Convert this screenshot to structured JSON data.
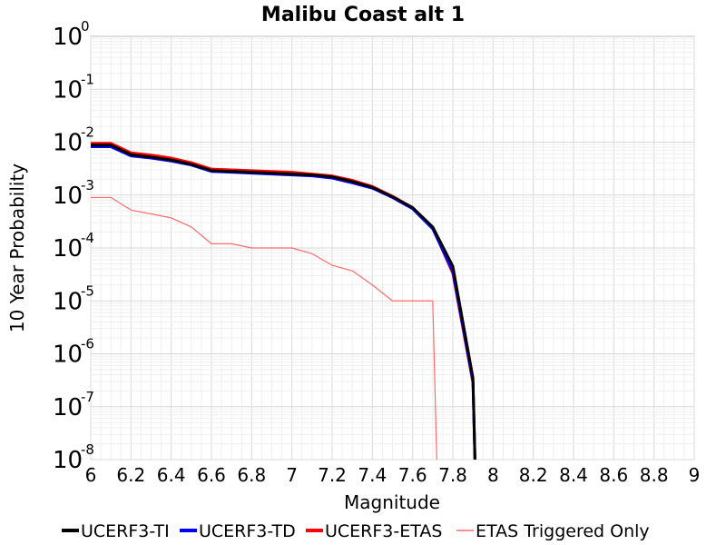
{
  "chart_data": {
    "type": "line",
    "title": "Malibu Coast alt 1",
    "xlabel": "Magnitude",
    "ylabel": "10 Year Probability",
    "xlim": [
      6,
      9
    ],
    "ylim": [
      1e-08,
      1
    ],
    "yscale": "log",
    "grid": true,
    "legend_position": "bottom",
    "x_ticks": [
      "6",
      "6.2",
      "6.4",
      "6.6",
      "6.8",
      "7",
      "7.2",
      "7.4",
      "7.6",
      "7.8",
      "8",
      "8.2",
      "8.4",
      "8.6",
      "8.8",
      "9"
    ],
    "y_ticks": [
      {
        "base": "10",
        "exp": "0"
      },
      {
        "base": "10",
        "exp": "-1"
      },
      {
        "base": "10",
        "exp": "-2"
      },
      {
        "base": "10",
        "exp": "-3"
      },
      {
        "base": "10",
        "exp": "-4"
      },
      {
        "base": "10",
        "exp": "-5"
      },
      {
        "base": "10",
        "exp": "-6"
      },
      {
        "base": "10",
        "exp": "-7"
      },
      {
        "base": "10",
        "exp": "-8"
      }
    ],
    "series": [
      {
        "name": "UCERF3-TI",
        "color": "#000000",
        "x": [
          6.0,
          6.1,
          6.2,
          6.3,
          6.4,
          6.5,
          6.6,
          6.7,
          6.8,
          6.9,
          7.0,
          7.1,
          7.2,
          7.3,
          7.4,
          7.5,
          7.6,
          7.7,
          7.8,
          7.9,
          7.91
        ],
        "y": [
          0.0088,
          0.0088,
          0.0058,
          0.0052,
          0.0046,
          0.0038,
          0.0029,
          0.0028,
          0.0027,
          0.0026,
          0.0025,
          0.0024,
          0.0022,
          0.0018,
          0.0014,
          0.00093,
          0.00058,
          0.00025,
          4.5e-05,
          3.5e-07,
          1e-08
        ]
      },
      {
        "name": "UCERF3-TD",
        "color": "#0000ff",
        "x": [
          6.0,
          6.1,
          6.2,
          6.3,
          6.4,
          6.5,
          6.6,
          6.7,
          6.8,
          6.9,
          7.0,
          7.1,
          7.2,
          7.3,
          7.4,
          7.5,
          7.6,
          7.7,
          7.8,
          7.9,
          7.91
        ],
        "y": [
          0.0082,
          0.0082,
          0.0055,
          0.005,
          0.0044,
          0.0037,
          0.0028,
          0.0027,
          0.0026,
          0.0025,
          0.0024,
          0.0023,
          0.0021,
          0.0017,
          0.00135,
          0.0009,
          0.00055,
          0.00023,
          3.6e-05,
          3e-07,
          1e-08
        ]
      },
      {
        "name": "UCERF3-ETAS",
        "color": "#ff0000",
        "x": [
          6.0,
          6.1,
          6.2,
          6.3,
          6.4,
          6.5,
          6.6,
          6.7,
          6.8,
          6.9,
          7.0,
          7.1,
          7.2,
          7.3,
          7.4,
          7.5,
          7.6,
          7.7,
          7.8,
          7.9,
          7.91
        ],
        "y": [
          0.0095,
          0.0095,
          0.0063,
          0.0057,
          0.005,
          0.0041,
          0.0031,
          0.003,
          0.0029,
          0.0028,
          0.0027,
          0.0025,
          0.0023,
          0.0019,
          0.00145,
          0.00095,
          0.00058,
          0.00024,
          3.3e-05,
          2.8e-07,
          1e-08
        ]
      },
      {
        "name": "ETAS Triggered Only",
        "color": "#ff6b6b",
        "x": [
          6.0,
          6.1,
          6.2,
          6.3,
          6.4,
          6.5,
          6.6,
          6.7,
          6.8,
          6.9,
          7.0,
          7.1,
          7.2,
          7.3,
          7.4,
          7.5,
          7.6,
          7.7,
          7.72
        ],
        "y": [
          0.0009,
          0.0009,
          0.00052,
          0.00044,
          0.00037,
          0.00025,
          0.00012,
          0.00012,
          0.0001,
          0.0001,
          0.0001,
          7.8e-05,
          4.7e-05,
          3.7e-05,
          2e-05,
          1e-05,
          1e-05,
          1e-05,
          1e-08
        ]
      }
    ]
  }
}
